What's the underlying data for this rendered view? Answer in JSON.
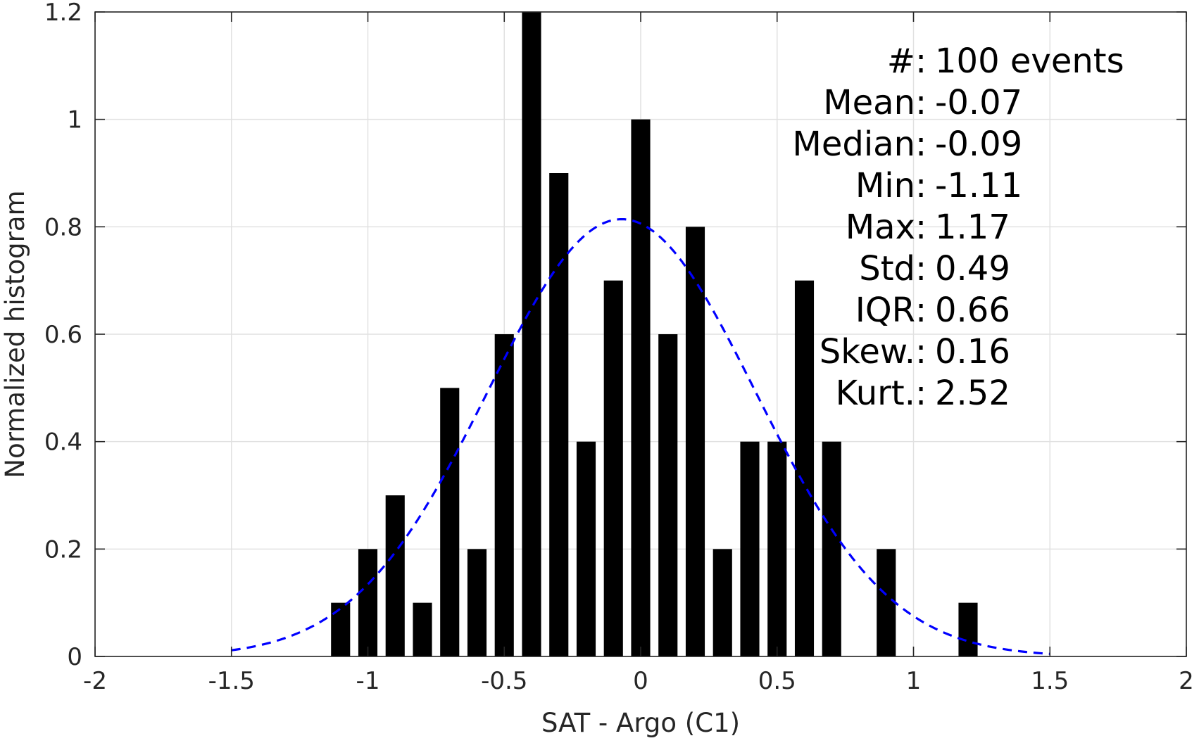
{
  "chart_data": {
    "type": "bar",
    "xlabel": "SAT - Argo (C1)",
    "ylabel": "Normalized histogram",
    "xlim": [
      -2,
      2
    ],
    "ylim": [
      0,
      1.2
    ],
    "xticks": [
      -2,
      -1.5,
      -1,
      -0.5,
      0,
      0.5,
      1,
      1.5,
      2
    ],
    "xtick_labels": [
      "-2",
      "-1.5",
      "-1",
      "-0.5",
      "0",
      "0.5",
      "1",
      "1.5",
      "2"
    ],
    "yticks": [
      0,
      0.2,
      0.4,
      0.6,
      0.8,
      1,
      1.2
    ],
    "ytick_labels": [
      "0",
      "0.2",
      "0.4",
      "0.6",
      "0.8",
      "1",
      "1.2"
    ],
    "grid": true,
    "bar_width": 0.07,
    "bar_color": "#000000",
    "bars": [
      {
        "x": -1.1,
        "value": 0.1
      },
      {
        "x": -1.0,
        "value": 0.2
      },
      {
        "x": -0.9,
        "value": 0.3
      },
      {
        "x": -0.8,
        "value": 0.1
      },
      {
        "x": -0.7,
        "value": 0.5
      },
      {
        "x": -0.6,
        "value": 0.2
      },
      {
        "x": -0.5,
        "value": 0.6
      },
      {
        "x": -0.4,
        "value": 1.2
      },
      {
        "x": -0.3,
        "value": 0.9
      },
      {
        "x": -0.2,
        "value": 0.4
      },
      {
        "x": -0.1,
        "value": 0.7
      },
      {
        "x": 0.0,
        "value": 1.0
      },
      {
        "x": 0.1,
        "value": 0.6
      },
      {
        "x": 0.2,
        "value": 0.8
      },
      {
        "x": 0.3,
        "value": 0.2
      },
      {
        "x": 0.4,
        "value": 0.4
      },
      {
        "x": 0.5,
        "value": 0.4
      },
      {
        "x": 0.6,
        "value": 0.7
      },
      {
        "x": 0.7,
        "value": 0.4
      },
      {
        "x": 0.9,
        "value": 0.2
      },
      {
        "x": 1.2,
        "value": 0.1
      }
    ],
    "fit_curve": {
      "style": "dashed",
      "color": "#0000ff",
      "mean": -0.07,
      "std": 0.49,
      "x_range": [
        -1.5,
        1.5
      ]
    },
    "annotations": [
      {
        "label": "#  ",
        "sep": ": ",
        "value": "100 events"
      },
      {
        "label": "Mean ",
        "sep": ": ",
        "value": "-0.07"
      },
      {
        "label": "Median ",
        "sep": ": ",
        "value": "-0.09"
      },
      {
        "label": "Min ",
        "sep": ": ",
        "value": "-1.11"
      },
      {
        "label": "Max ",
        "sep": ": ",
        "value": "1.17"
      },
      {
        "label": "Std ",
        "sep": ": ",
        "value": "0.49"
      },
      {
        "label": "IQR ",
        "sep": ": ",
        "value": "0.66"
      },
      {
        "label": "Skew. ",
        "sep": ": ",
        "value": "0.16"
      },
      {
        "label": "Kurt. ",
        "sep": ": ",
        "value": "2.52"
      }
    ]
  }
}
